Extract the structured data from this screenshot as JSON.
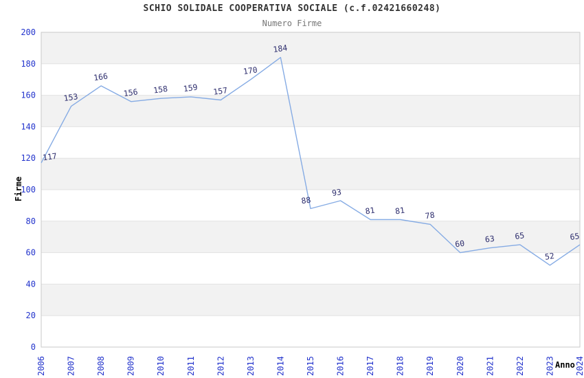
{
  "title": "SCHIO SOLIDALE COOPERATIVA SOCIALE (c.f.02421660248)",
  "subtitle": "Numero Firme",
  "colors": {
    "line": "#85abe4",
    "data_label": "#2e2e6e",
    "tick_label": "#2233cc",
    "title": "#333333",
    "subtitle": "#757575",
    "axis_title": "#000000",
    "band_gray": "#f2f2f2",
    "gridline": "#e2e2e2",
    "plot_border": "#c9c9c9",
    "background": "#ffffff"
  },
  "chart_data": {
    "type": "line",
    "title": "SCHIO SOLIDALE COOPERATIVA SOCIALE (c.f.02421660248)",
    "subtitle": "Numero Firme",
    "xlabel": "Anno",
    "ylabel": "Firme",
    "x": [
      "2006",
      "2007",
      "2008",
      "2009",
      "2010",
      "2011",
      "2012",
      "2013",
      "2014",
      "2015",
      "2016",
      "2017",
      "2018",
      "2019",
      "2020",
      "2021",
      "2022",
      "2023",
      "2024"
    ],
    "series": [
      {
        "name": "Numero Firme",
        "values": [
          117,
          153,
          166,
          156,
          158,
          159,
          157,
          170,
          184,
          88,
          93,
          81,
          81,
          78,
          60,
          63,
          65,
          52,
          65
        ]
      }
    ],
    "ylim": [
      0,
      200
    ],
    "ytick_step": 20,
    "yticks": [
      0,
      20,
      40,
      60,
      80,
      100,
      120,
      140,
      160,
      180,
      200
    ],
    "grid": "horizontal-alternating-bands",
    "legend": "none",
    "markers": "none",
    "data_labels_shown": true
  }
}
